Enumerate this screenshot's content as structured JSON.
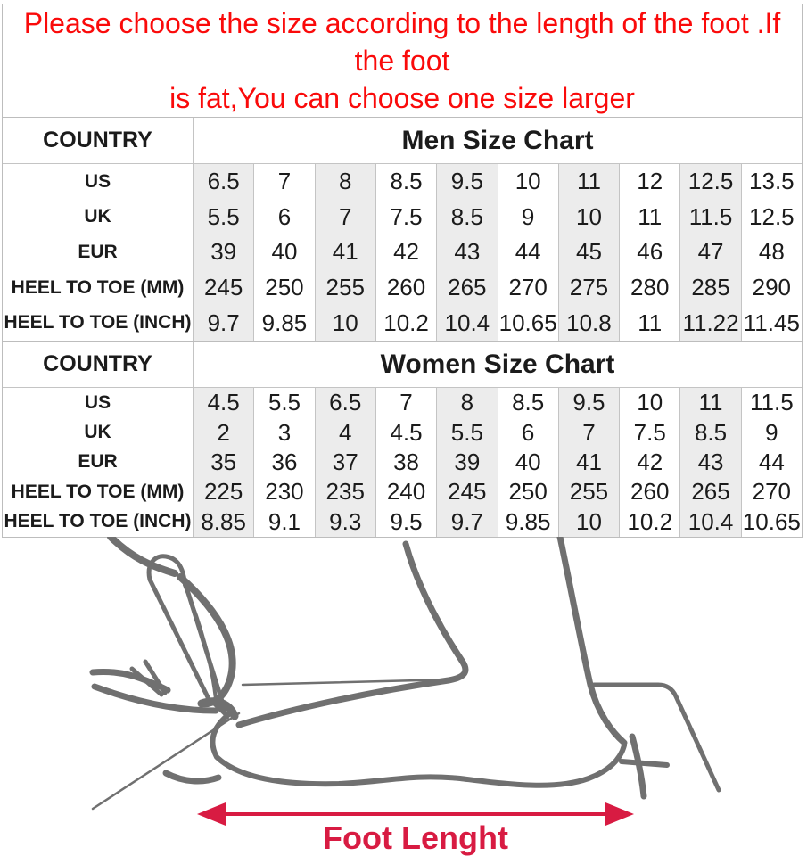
{
  "banner": {
    "line1": "Please choose the size according to the length of the foot .If the foot",
    "line2": "is fat,You can choose one size larger"
  },
  "tables": [
    {
      "corner_label": "COUNTRY",
      "title": "Men Size Chart",
      "rows": [
        {
          "label": "US",
          "values": [
            "6.5",
            "7",
            "8",
            "8.5",
            "9.5",
            "10",
            "11",
            "12",
            "12.5",
            "13.5"
          ]
        },
        {
          "label": "UK",
          "values": [
            "5.5",
            "6",
            "7",
            "7.5",
            "8.5",
            "9",
            "10",
            "11",
            "11.5",
            "12.5"
          ]
        },
        {
          "label": "EUR",
          "values": [
            "39",
            "40",
            "41",
            "42",
            "43",
            "44",
            "45",
            "46",
            "47",
            "48"
          ]
        },
        {
          "label": "HEEL TO TOE (MM)",
          "values": [
            "245",
            "250",
            "255",
            "260",
            "265",
            "270",
            "275",
            "280",
            "285",
            "290"
          ]
        },
        {
          "label": "HEEL TO TOE (INCH)",
          "values": [
            "9.7",
            "9.85",
            "10",
            "10.2",
            "10.4",
            "10.65",
            "10.8",
            "11",
            "11.22",
            "11.45"
          ]
        }
      ]
    },
    {
      "corner_label": "COUNTRY",
      "title": "Women Size Chart",
      "rows": [
        {
          "label": "US",
          "values": [
            "4.5",
            "5.5",
            "6.5",
            "7",
            "8",
            "8.5",
            "9.5",
            "10",
            "11",
            "11.5"
          ]
        },
        {
          "label": "UK",
          "values": [
            "2",
            "3",
            "4",
            "4.5",
            "5.5",
            "6",
            "7",
            "7.5",
            "8.5",
            "9"
          ]
        },
        {
          "label": "EUR",
          "values": [
            "35",
            "36",
            "37",
            "38",
            "39",
            "40",
            "41",
            "42",
            "43",
            "44"
          ]
        },
        {
          "label": "HEEL TO TOE (MM)",
          "values": [
            "225",
            "230",
            "235",
            "240",
            "245",
            "250",
            "255",
            "260",
            "265",
            "270"
          ]
        },
        {
          "label": "HEEL TO TOE (INCH)",
          "values": [
            "8.85",
            "9.1",
            "9.3",
            "9.5",
            "9.7",
            "9.85",
            "10",
            "10.2",
            "10.4",
            "10.65"
          ]
        }
      ]
    }
  ],
  "diagram": {
    "label": "Foot Lenght"
  },
  "colors": {
    "banner_red": "#fa0a0a",
    "arrow_crimson": "#d81b42",
    "sketch_gray": "#707070",
    "column_shade": "#ececec",
    "table_border": "#c4c4c4",
    "text_black": "#1b1b1b"
  }
}
